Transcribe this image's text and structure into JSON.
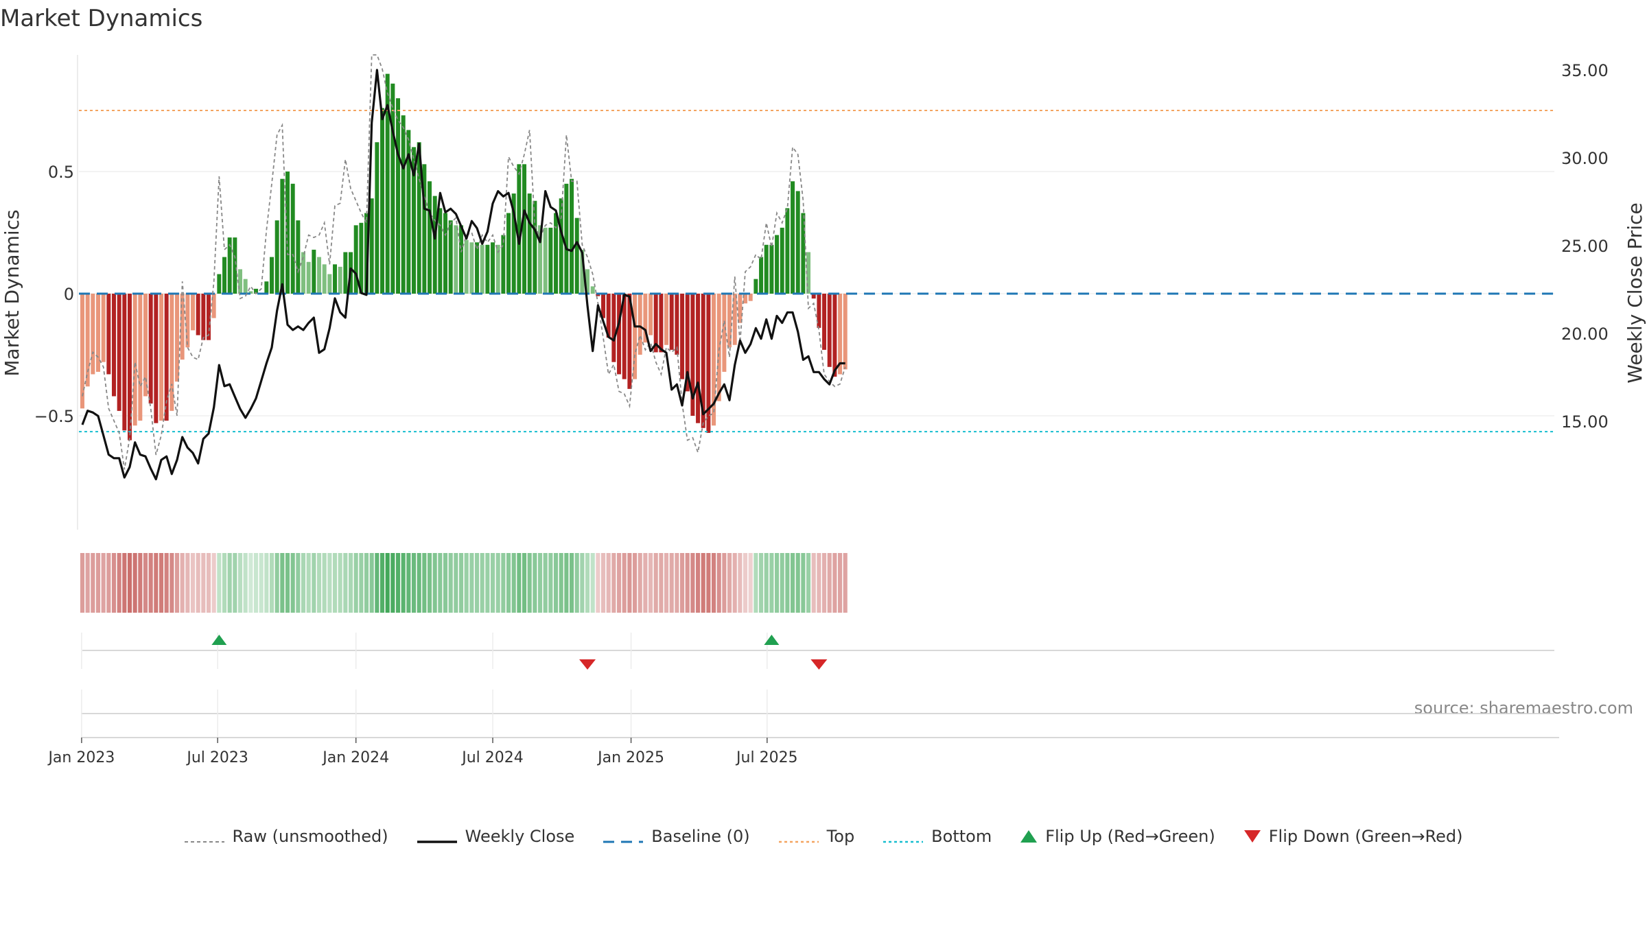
{
  "chart_data": {
    "type": "bar",
    "title": "Market Dynamics",
    "ylabel_left": "Market Dynamics",
    "ylabel_right": "Weekly Close Price",
    "source": "source: sharemaestro.com",
    "x_start": "2023-01-02",
    "x_tick_labels": [
      {
        "date": "2023-01-01",
        "label": "Jan 2023"
      },
      {
        "date": "2023-07-01",
        "label": "Jul 2023"
      },
      {
        "date": "2024-01-01",
        "label": "Jan 2024"
      },
      {
        "date": "2024-07-01",
        "label": "Jul 2024"
      },
      {
        "date": "2025-01-01",
        "label": "Jan 2025"
      },
      {
        "date": "2025-07-01",
        "label": "Jul 2025"
      }
    ],
    "left_ticks": [
      {
        "value": 0.5,
        "label": "0.5"
      },
      {
        "value": 0,
        "label": "0"
      },
      {
        "value": -0.5,
        "label": "−0.5"
      }
    ],
    "right_ticks": [
      {
        "value": 35,
        "label": "35.00"
      },
      {
        "value": 30,
        "label": "30.00"
      },
      {
        "value": 25,
        "label": "25.00"
      },
      {
        "value": 20,
        "label": "20.00"
      },
      {
        "value": 15,
        "label": "15.00"
      }
    ],
    "ylim_left": [
      -0.96,
      0.98
    ],
    "ylim_right": [
      11.2,
      36.4
    ],
    "top_line": 0.75,
    "bottom_line": -0.565,
    "baseline": 0,
    "colors": {
      "strong_green": "#228b22",
      "light_green": "#7fbf7f",
      "strong_red": "#b22222",
      "light_red": "#e9967a",
      "close_line": "#111111",
      "raw_line": "#888888",
      "baseline": "#1f77b4",
      "top": "#f4a460",
      "bottom": "#17becf",
      "flip_up": "#20a050",
      "flip_down": "#d62728"
    },
    "dynamics": [
      -0.47,
      -0.38,
      -0.33,
      -0.32,
      -0.28,
      -0.33,
      -0.42,
      -0.48,
      -0.56,
      -0.6,
      -0.54,
      -0.52,
      -0.42,
      -0.45,
      -0.53,
      -0.52,
      -0.52,
      -0.48,
      -0.36,
      -0.27,
      -0.22,
      -0.15,
      -0.17,
      -0.19,
      -0.19,
      -0.1,
      0.08,
      0.15,
      0.23,
      0.23,
      0.1,
      0.06,
      0.01,
      0.02,
      0,
      0.05,
      0.15,
      0.3,
      0.47,
      0.5,
      0.45,
      0.3,
      0.17,
      0.13,
      0.18,
      0.15,
      0.12,
      0.08,
      0.12,
      0.11,
      0.17,
      0.17,
      0.28,
      0.29,
      0.33,
      0.39,
      0.62,
      0.76,
      0.9,
      0.86,
      0.8,
      0.73,
      0.67,
      0.6,
      0.62,
      0.53,
      0.46,
      0.4,
      0.35,
      0.33,
      0.3,
      0.28,
      0.28,
      0.22,
      0.21,
      0.21,
      0.2,
      0.2,
      0.21,
      0.2,
      0.24,
      0.33,
      0.41,
      0.53,
      0.53,
      0.41,
      0.38,
      0.28,
      0.27,
      0.27,
      0.33,
      0.39,
      0.45,
      0.47,
      0.31,
      0.18,
      0.1,
      0.03,
      -0.01,
      -0.1,
      -0.18,
      -0.28,
      -0.33,
      -0.35,
      -0.39,
      -0.35,
      -0.25,
      -0.2,
      -0.17,
      -0.24,
      -0.24,
      -0.21,
      -0.23,
      -0.25,
      -0.35,
      -0.4,
      -0.5,
      -0.53,
      -0.55,
      -0.57,
      -0.54,
      -0.44,
      -0.32,
      -0.22,
      -0.21,
      -0.12,
      -0.04,
      -0.03,
      0.06,
      0.15,
      0.2,
      0.2,
      0.24,
      0.27,
      0.35,
      0.46,
      0.42,
      0.33,
      0.17,
      -0.02,
      -0.14,
      -0.23,
      -0.3,
      -0.34,
      -0.33,
      -0.31
    ],
    "raw": [
      -0.42,
      -0.32,
      -0.24,
      -0.26,
      -0.3,
      -0.47,
      -0.52,
      -0.57,
      -0.72,
      -0.59,
      -0.28,
      -0.38,
      -0.34,
      -0.47,
      -0.66,
      -0.58,
      -0.44,
      -0.37,
      -0.5,
      0.05,
      -0.22,
      -0.26,
      -0.27,
      -0.18,
      -0.17,
      0.05,
      0.48,
      0.18,
      0.2,
      0.15,
      -0.02,
      -0.01,
      0.03,
      0,
      0.02,
      0.26,
      0.45,
      0.65,
      0.69,
      0.16,
      0.16,
      0.09,
      0.15,
      0.24,
      0.23,
      0.24,
      0.29,
      0.12,
      0.36,
      0.37,
      0.55,
      0.43,
      0.38,
      0.33,
      0.29,
      0.99,
      0.98,
      0.92,
      0.82,
      0.76,
      0.71,
      0.68,
      0.63,
      0.55,
      0.47,
      0.4,
      0.33,
      0.3,
      0.28,
      0.24,
      0.29,
      0.31,
      0.17,
      0.24,
      0.25,
      0.18,
      0.24,
      0.21,
      0.24,
      0.17,
      0.2,
      0.56,
      0.52,
      0.49,
      0.57,
      0.67,
      0.28,
      0.23,
      0.28,
      0.29,
      0.27,
      0.31,
      0.65,
      0.46,
      0.46,
      0.2,
      0.15,
      0.08,
      -0.04,
      -0.18,
      -0.33,
      -0.29,
      -0.4,
      -0.41,
      -0.46,
      -0.25,
      -0.17,
      -0.23,
      -0.2,
      -0.28,
      -0.33,
      -0.22,
      -0.24,
      -0.22,
      -0.45,
      -0.6,
      -0.59,
      -0.65,
      -0.53,
      -0.5,
      -0.49,
      -0.23,
      -0.11,
      -0.26,
      0.07,
      -0.2,
      0.09,
      0.11,
      0.16,
      0.14,
      0.29,
      0.19,
      0.33,
      0.29,
      0.35,
      0.6,
      0.57,
      0.38,
      -0.06,
      -0.04,
      -0.15,
      -0.33,
      -0.36,
      -0.38,
      -0.37,
      -0.3
    ],
    "close": [
      14.8,
      15.6,
      15.5,
      15.3,
      14.2,
      13.1,
      12.9,
      12.9,
      11.8,
      12.4,
      13.8,
      13.1,
      13.0,
      12.3,
      11.7,
      12.8,
      13.0,
      12.0,
      12.8,
      14.1,
      13.5,
      13.2,
      12.6,
      14.0,
      14.3,
      15.8,
      18.2,
      17.0,
      17.1,
      16.4,
      15.7,
      15.2,
      15.7,
      16.3,
      17.3,
      18.3,
      19.2,
      21.3,
      22.8,
      20.5,
      20.2,
      20.4,
      20.2,
      20.6,
      20.9,
      18.9,
      19.1,
      20.3,
      22.0,
      21.2,
      20.9,
      23.7,
      23.4,
      22.3,
      22.2,
      32.0,
      35.0,
      32.2,
      33.0,
      31.5,
      30.2,
      29.4,
      30.2,
      29.0,
      30.8,
      27.1,
      27.0,
      25.4,
      28.0,
      26.9,
      27.1,
      26.8,
      26.1,
      25.4,
      26.4,
      26.0,
      25.1,
      25.8,
      27.4,
      28.1,
      27.8,
      28.0,
      26.9,
      25.1,
      27.0,
      26.3,
      25.9,
      25.2,
      28.1,
      27.2,
      27.0,
      25.8,
      24.8,
      24.7,
      25.2,
      24.6,
      21.6,
      19.0,
      21.6,
      20.7,
      19.8,
      19.6,
      20.6,
      22.2,
      22.1,
      20.4,
      20.4,
      20.2,
      19.0,
      19.4,
      19.1,
      18.9,
      16.8,
      17.1,
      15.9,
      17.8,
      16.3,
      17.2,
      15.4,
      15.7,
      16.0,
      16.6,
      17.1,
      16.2,
      18.2,
      19.6,
      18.9,
      19.4,
      20.3,
      19.7,
      20.8,
      19.7,
      21.0,
      20.6,
      21.2,
      21.2,
      20.1,
      18.5,
      18.7,
      17.8,
      17.8,
      17.4,
      17.1,
      17.9,
      18.3,
      18.3
    ],
    "heat": [
      0.55,
      0.5,
      0.55,
      0.55,
      0.5,
      0.55,
      0.65,
      0.75,
      0.85,
      0.9,
      0.85,
      0.8,
      0.7,
      0.75,
      0.8,
      0.8,
      0.75,
      0.7,
      0.55,
      0.4,
      0.35,
      0.25,
      0.3,
      0.3,
      0.3,
      0.2,
      0.2,
      0.3,
      0.4,
      0.4,
      0.25,
      0.2,
      0.1,
      0.15,
      0.15,
      0.2,
      0.3,
      0.5,
      0.65,
      0.65,
      0.6,
      0.5,
      0.35,
      0.3,
      0.4,
      0.3,
      0.3,
      0.25,
      0.3,
      0.3,
      0.35,
      0.35,
      0.45,
      0.45,
      0.5,
      0.55,
      0.8,
      0.9,
      1.0,
      0.95,
      0.9,
      0.85,
      0.8,
      0.75,
      0.75,
      0.7,
      0.65,
      0.6,
      0.55,
      0.55,
      0.5,
      0.5,
      0.5,
      0.45,
      0.45,
      0.45,
      0.45,
      0.45,
      0.45,
      0.45,
      0.5,
      0.55,
      0.6,
      0.7,
      0.7,
      0.6,
      0.55,
      0.5,
      0.5,
      0.5,
      0.55,
      0.6,
      0.65,
      0.65,
      0.5,
      0.4,
      0.3,
      0.2,
      0.2,
      0.3,
      0.35,
      0.45,
      0.5,
      0.55,
      0.6,
      0.55,
      0.45,
      0.4,
      0.35,
      0.45,
      0.45,
      0.4,
      0.45,
      0.45,
      0.55,
      0.6,
      0.7,
      0.75,
      0.8,
      0.8,
      0.75,
      0.65,
      0.55,
      0.45,
      0.4,
      0.3,
      0.2,
      0.15,
      0.3,
      0.4,
      0.45,
      0.45,
      0.5,
      0.5,
      0.55,
      0.6,
      0.6,
      0.55,
      0.45,
      0.3,
      0.35,
      0.4,
      0.45,
      0.5,
      0.5,
      0.5
    ],
    "flip_up_weeks": [
      26,
      131
    ],
    "flip_down_weeks": [
      96,
      140
    ],
    "legend": [
      "Raw (unsmoothed)",
      "Weekly Close",
      "Baseline (0)",
      "Top",
      "Bottom",
      "Flip Up (Red→Green)",
      "Flip Down (Green→Red)"
    ]
  }
}
